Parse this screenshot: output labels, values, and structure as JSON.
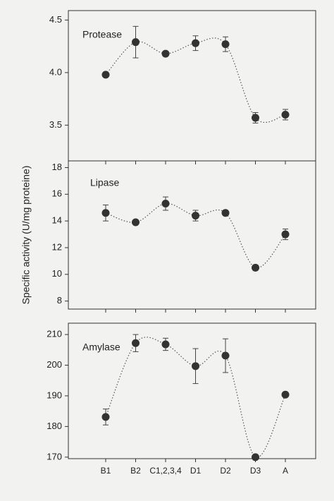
{
  "chart_data": [
    {
      "type": "line",
      "title": "Protease",
      "values": [
        3.98,
        4.29,
        4.18,
        4.28,
        4.27,
        3.57,
        3.6
      ],
      "errors": [
        null,
        0.15,
        null,
        0.07,
        0.07,
        0.05,
        0.05
      ],
      "ylim": [
        3.16,
        4.59
      ],
      "yticks": [
        3.5,
        {
          "value": 4.0,
          "label": "4.0"
        },
        4.5
      ],
      "color": "#333333"
    },
    {
      "type": "line",
      "title": "Lipase",
      "ylabel": "Specific activity (U/mg proteine)",
      "values": [
        14.6,
        13.9,
        15.3,
        14.4,
        14.6,
        10.5,
        13.0
      ],
      "errors": [
        0.6,
        null,
        0.5,
        0.4,
        null,
        0.2,
        0.4
      ],
      "ylim": [
        7.4,
        18.5
      ],
      "yticks": [
        8,
        10,
        12,
        14,
        16,
        18
      ],
      "color": "#333333"
    },
    {
      "type": "line",
      "title": "Amylase",
      "categories": [
        "B1",
        "B2",
        "C1,2,3,4",
        "D1",
        "D2",
        "D3",
        "A"
      ],
      "values": [
        183.1,
        207.2,
        206.8,
        199.7,
        203.1,
        170,
        190.4
      ],
      "errors": [
        2.6,
        2.8,
        2,
        5.7,
        5.5,
        null,
        null
      ],
      "ylim": [
        169.5,
        213.7
      ],
      "yticks": [
        170,
        180,
        190,
        200,
        210
      ],
      "color": "#333333"
    }
  ]
}
